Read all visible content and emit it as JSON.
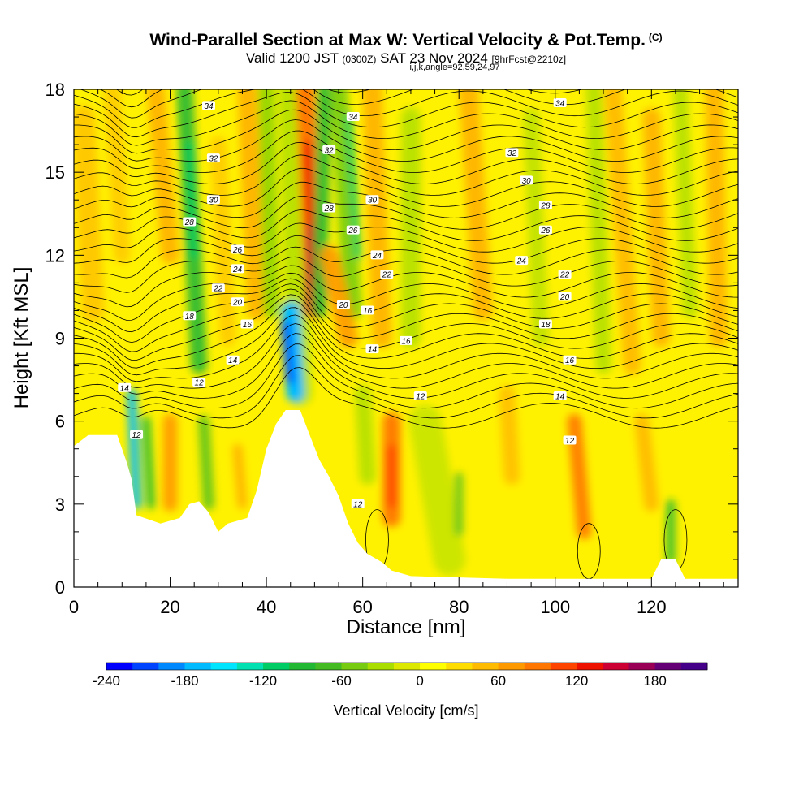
{
  "title": {
    "main": "Wind-Parallel Section at Max W: Vertical Velocity & Pot.Temp.",
    "copyright": "(C)",
    "valid_prefix": "Valid 1200 JST",
    "valid_z": "(0300Z)",
    "valid_date": "SAT 23 Nov 2024",
    "forecast": "[9hrFcst@2210z]",
    "indices": "i,j,k,angle=92,59,24,97"
  },
  "chart_data": {
    "type": "heatmap",
    "xlabel": "Distance [nm]",
    "ylabel": "Height [Kft MSL]",
    "xlim": [
      0,
      138
    ],
    "ylim": [
      0,
      18
    ],
    "x_ticks": [
      "0",
      "20",
      "40",
      "60",
      "80",
      "100",
      "120"
    ],
    "y_ticks": [
      "0",
      "3",
      "6",
      "9",
      "12",
      "15",
      "18"
    ],
    "colorbar": {
      "label": "Vertical Velocity [cm/s]",
      "range": [
        -240,
        220
      ],
      "step": 20,
      "tick_labels": [
        "-240",
        "-180",
        "-120",
        "-60",
        "0",
        "60",
        "120",
        "180"
      ],
      "colors": [
        "#0000ff",
        "#0044ff",
        "#0088ff",
        "#00bbff",
        "#00e5ff",
        "#00e0b0",
        "#00cc66",
        "#22b833",
        "#44bb22",
        "#77cc11",
        "#aadd00",
        "#dde800",
        "#ffff00",
        "#ffdd00",
        "#ffbb00",
        "#ff9900",
        "#ff7700",
        "#ff4400",
        "#ee1100",
        "#cc0033",
        "#990055",
        "#660077",
        "#440088"
      ]
    },
    "terrain_profile_kft": [
      [
        0,
        5.1
      ],
      [
        3,
        5.5
      ],
      [
        9,
        5.5
      ],
      [
        11,
        4.5
      ],
      [
        12,
        3.9
      ],
      [
        13,
        2.6
      ],
      [
        18,
        2.3
      ],
      [
        22,
        2.5
      ],
      [
        24,
        3
      ],
      [
        26,
        3.1
      ],
      [
        28,
        2.7
      ],
      [
        30,
        2.0
      ],
      [
        32,
        2.3
      ],
      [
        36,
        2.5
      ],
      [
        38,
        3.5
      ],
      [
        40,
        5.0
      ],
      [
        42,
        5.9
      ],
      [
        44,
        6.4
      ],
      [
        47,
        6.4
      ],
      [
        49,
        5.5
      ],
      [
        51,
        4.6
      ],
      [
        53,
        4.0
      ],
      [
        55,
        3.3
      ],
      [
        57,
        2.3
      ],
      [
        59,
        1.6
      ],
      [
        61,
        1.2
      ],
      [
        64,
        0.9
      ],
      [
        66,
        0.6
      ],
      [
        70,
        0.4
      ],
      [
        90,
        0.3
      ],
      [
        110,
        0.3
      ],
      [
        120,
        0.3
      ],
      [
        122,
        1.0
      ],
      [
        125,
        1.0
      ],
      [
        127,
        0.3
      ],
      [
        138,
        0.3
      ]
    ],
    "theta_labels": [
      {
        "x": 28,
        "y": 17.4,
        "text": "34"
      },
      {
        "x": 58,
        "y": 17.0,
        "text": "34"
      },
      {
        "x": 101,
        "y": 17.5,
        "text": "34"
      },
      {
        "x": 29,
        "y": 15.5,
        "text": "32"
      },
      {
        "x": 53,
        "y": 15.8,
        "text": "32"
      },
      {
        "x": 91,
        "y": 15.7,
        "text": "32"
      },
      {
        "x": 29,
        "y": 14.0,
        "text": "30"
      },
      {
        "x": 62,
        "y": 14.0,
        "text": "30"
      },
      {
        "x": 94,
        "y": 14.7,
        "text": "30"
      },
      {
        "x": 24,
        "y": 13.2,
        "text": "28"
      },
      {
        "x": 53,
        "y": 13.7,
        "text": "28"
      },
      {
        "x": 98,
        "y": 13.8,
        "text": "28"
      },
      {
        "x": 34,
        "y": 12.2,
        "text": "26"
      },
      {
        "x": 58,
        "y": 12.9,
        "text": "26"
      },
      {
        "x": 98,
        "y": 12.9,
        "text": "26"
      },
      {
        "x": 34,
        "y": 11.5,
        "text": "24"
      },
      {
        "x": 63,
        "y": 12.0,
        "text": "24"
      },
      {
        "x": 93,
        "y": 11.8,
        "text": "24"
      },
      {
        "x": 30,
        "y": 10.8,
        "text": "22"
      },
      {
        "x": 65,
        "y": 11.3,
        "text": "22"
      },
      {
        "x": 102,
        "y": 11.3,
        "text": "22"
      },
      {
        "x": 34,
        "y": 10.3,
        "text": "20"
      },
      {
        "x": 56,
        "y": 10.2,
        "text": "20"
      },
      {
        "x": 102,
        "y": 10.5,
        "text": "20"
      },
      {
        "x": 24,
        "y": 9.8,
        "text": "18"
      },
      {
        "x": 61,
        "y": 10.0,
        "text": "16"
      },
      {
        "x": 98,
        "y": 9.5,
        "text": "18"
      },
      {
        "x": 36,
        "y": 9.5,
        "text": "16"
      },
      {
        "x": 69,
        "y": 8.9,
        "text": "16"
      },
      {
        "x": 103,
        "y": 8.2,
        "text": "16"
      },
      {
        "x": 33,
        "y": 8.2,
        "text": "14"
      },
      {
        "x": 62,
        "y": 8.6,
        "text": "14"
      },
      {
        "x": 101,
        "y": 6.9,
        "text": "14"
      },
      {
        "x": 26,
        "y": 7.4,
        "text": "12"
      },
      {
        "x": 72,
        "y": 6.9,
        "text": "12"
      },
      {
        "x": 103,
        "y": 5.3,
        "text": "12"
      },
      {
        "x": 10.5,
        "y": 7.2,
        "text": "14"
      },
      {
        "x": 13,
        "y": 5.5,
        "text": "12"
      },
      {
        "x": 59,
        "y": 3.0,
        "text": "12"
      }
    ]
  }
}
